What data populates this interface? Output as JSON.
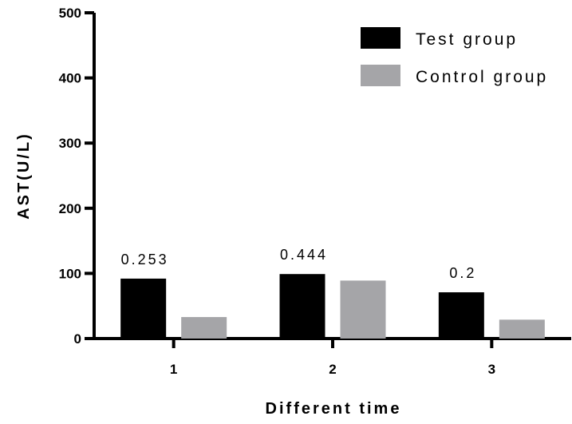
{
  "chart_data": {
    "type": "bar",
    "categories": [
      "1",
      "2",
      "3"
    ],
    "series": [
      {
        "name": "Test group",
        "values": [
          92,
          99,
          71
        ],
        "color": "#000000"
      },
      {
        "name": "Control group",
        "values": [
          33,
          89,
          29
        ],
        "color": "#a5a5a8"
      }
    ],
    "annotations": [
      "0.253",
      "0.444",
      "0.2"
    ],
    "xlabel": "Different time",
    "ylabel": "AST(U/L)",
    "ylim": [
      0,
      500
    ],
    "yticks": [
      0,
      100,
      200,
      300,
      400,
      500
    ],
    "legend_position": "top-right",
    "grid": false
  }
}
